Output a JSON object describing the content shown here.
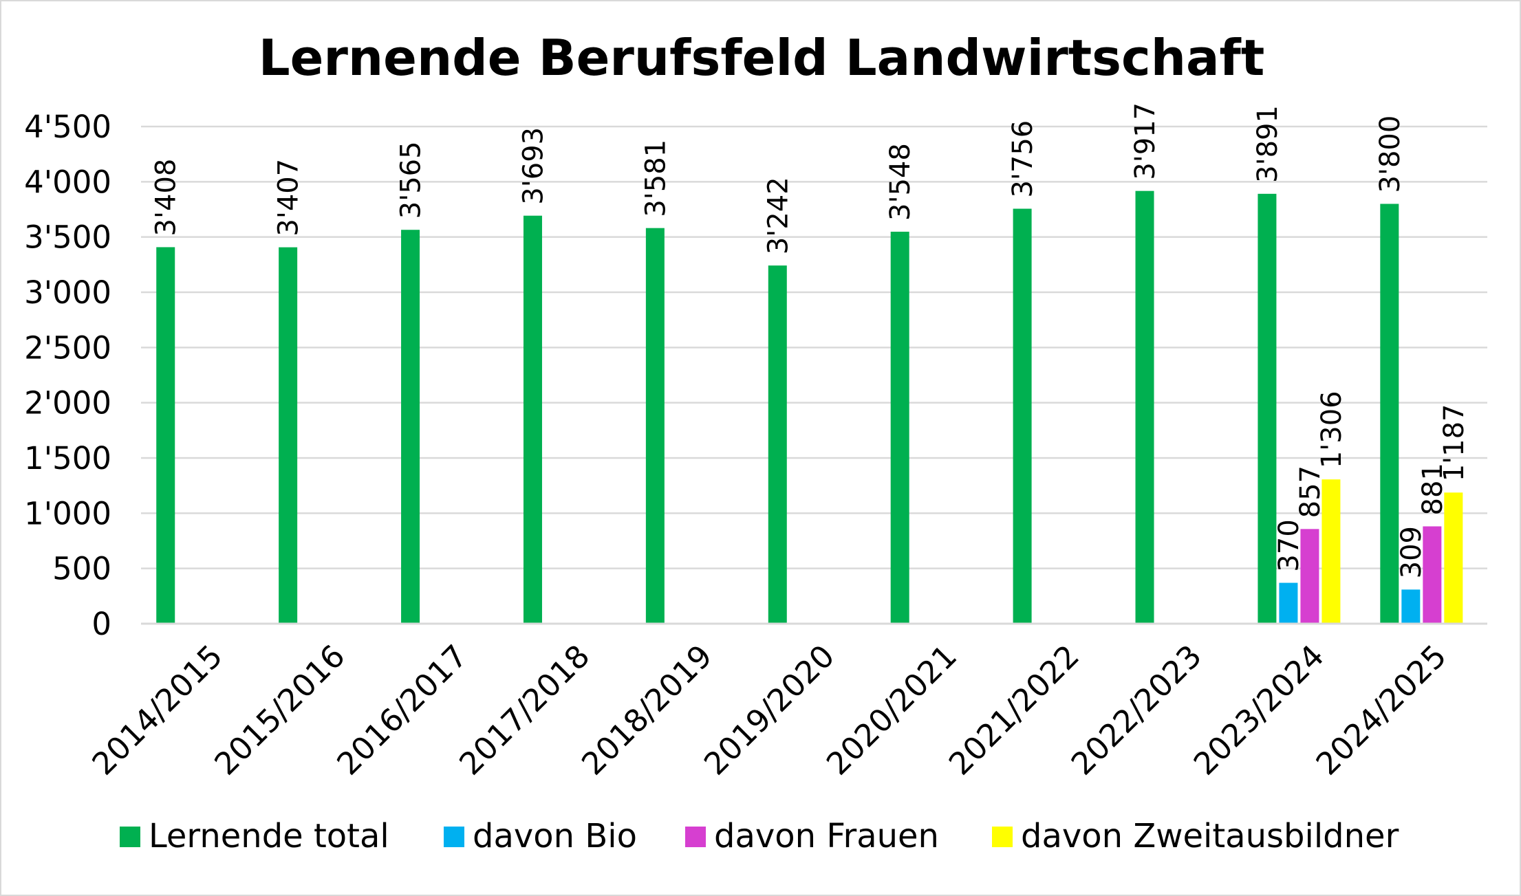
{
  "chart_data": {
    "type": "bar",
    "title": "Lernende Berufsfeld Landwirtschaft",
    "xlabel": "",
    "ylabel": "",
    "ylim": [
      0,
      4500
    ],
    "yticks": [
      0,
      500,
      1000,
      1500,
      2000,
      2500,
      3000,
      3500,
      4000,
      4500
    ],
    "ytick_labels": [
      "0",
      "500",
      "1'000",
      "1'500",
      "2'000",
      "2'500",
      "3'000",
      "3'500",
      "4'000",
      "4'500"
    ],
    "grid": true,
    "legend_position": "bottom",
    "categories": [
      "2014/2015",
      "2015/2016",
      "2016/2017",
      "2017/2018",
      "2018/2019",
      "2019/2020",
      "2020/2021",
      "2021/2022",
      "2022/2023",
      "2023/2024",
      "2024/2025"
    ],
    "series": [
      {
        "name": "Lernende total",
        "color": "#00b050",
        "values": [
          3408,
          3407,
          3565,
          3693,
          3581,
          3242,
          3548,
          3756,
          3917,
          3891,
          3800
        ],
        "labels": [
          "3'408",
          "3'407",
          "3'565",
          "3'693",
          "3'581",
          "3'242",
          "3'548",
          "3'756",
          "3'917",
          "3'891",
          "3'800"
        ]
      },
      {
        "name": "davon Bio",
        "color": "#00b0f0",
        "values": [
          null,
          null,
          null,
          null,
          null,
          null,
          null,
          null,
          null,
          370,
          309
        ],
        "labels": [
          null,
          null,
          null,
          null,
          null,
          null,
          null,
          null,
          null,
          "370",
          "309"
        ]
      },
      {
        "name": "davon Frauen",
        "color": "#d63fd0",
        "values": [
          null,
          null,
          null,
          null,
          null,
          null,
          null,
          null,
          null,
          857,
          881
        ],
        "labels": [
          null,
          null,
          null,
          null,
          null,
          null,
          null,
          null,
          null,
          "857",
          "881"
        ]
      },
      {
        "name": "davon Zweitausbildner",
        "color": "#ffff00",
        "values": [
          null,
          null,
          null,
          null,
          null,
          null,
          null,
          null,
          null,
          1306,
          1187
        ],
        "labels": [
          null,
          null,
          null,
          null,
          null,
          null,
          null,
          null,
          null,
          "1'306",
          "1'187"
        ]
      }
    ]
  }
}
